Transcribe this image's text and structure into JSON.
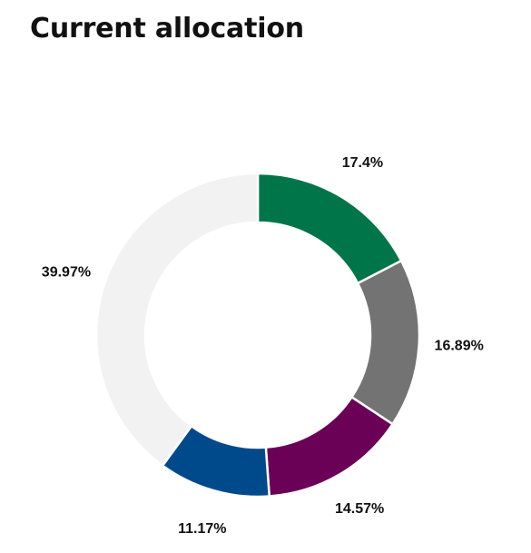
{
  "chart_data": {
    "type": "pie",
    "variant": "donut",
    "title": "Current allocation",
    "slices": [
      {
        "label": "17.4%",
        "value": 17.4,
        "color": "#00754A"
      },
      {
        "label": "16.89%",
        "value": 16.89,
        "color": "#737373"
      },
      {
        "label": "14.57%",
        "value": 14.57,
        "color": "#6B0057"
      },
      {
        "label": "11.17%",
        "value": 11.17,
        "color": "#004A8C"
      },
      {
        "label": "39.97%",
        "value": 39.97,
        "color": "#F2F2F2"
      }
    ],
    "start_angle": "12 o'clock",
    "direction": "clockwise",
    "legend": "none"
  }
}
